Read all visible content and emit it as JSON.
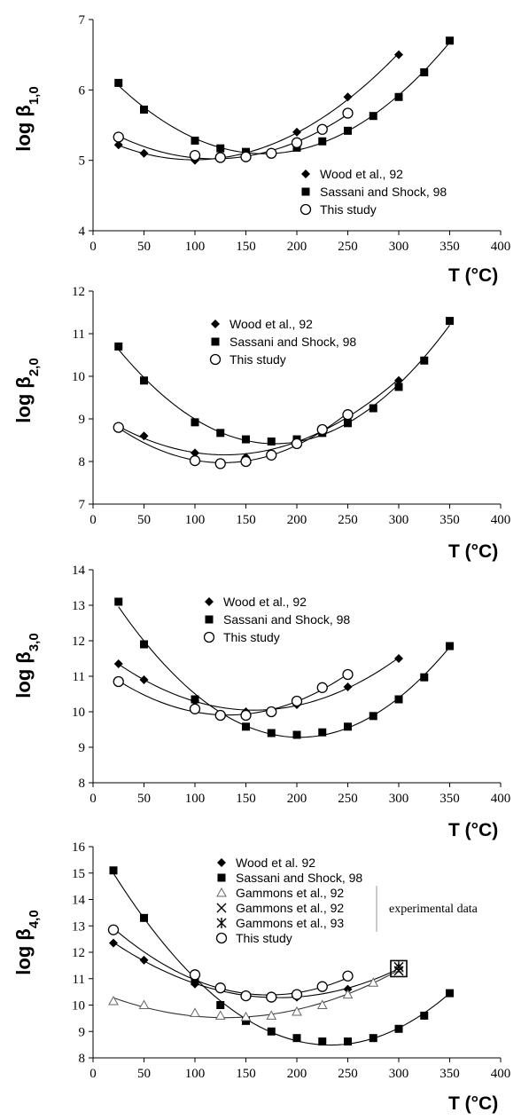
{
  "chart_data": [
    {
      "type": "scatter",
      "ylabel": {
        "main": "log β",
        "sub": "1,0"
      },
      "xlabel": "T (°C)",
      "xlim": [
        0,
        400
      ],
      "ylim": [
        4,
        7
      ],
      "xticks": [
        0,
        50,
        100,
        150,
        200,
        250,
        300,
        350,
        400
      ],
      "yticks": [
        4,
        5,
        6,
        7
      ],
      "legend_position": "bottom-right",
      "series": [
        {
          "name": "Wood et al., 92",
          "marker": "diamond",
          "x": [
            25,
            50,
            100,
            150,
            200,
            250,
            300
          ],
          "y": [
            5.22,
            5.1,
            5.0,
            5.08,
            5.4,
            5.9,
            6.5
          ]
        },
        {
          "name": "Sassani and Shock, 98",
          "marker": "square",
          "x": [
            25,
            50,
            100,
            125,
            150,
            200,
            225,
            250,
            275,
            300,
            325,
            350
          ],
          "y": [
            6.1,
            5.72,
            5.28,
            5.17,
            5.12,
            5.18,
            5.27,
            5.42,
            5.63,
            5.9,
            6.25,
            6.7
          ]
        },
        {
          "name": "This study",
          "marker": "circle",
          "x": [
            25,
            100,
            125,
            150,
            175,
            200,
            225,
            250
          ],
          "y": [
            5.33,
            5.07,
            5.04,
            5.05,
            5.1,
            5.25,
            5.44,
            5.67
          ]
        }
      ]
    },
    {
      "type": "scatter",
      "ylabel": {
        "main": "log β",
        "sub": "2,0"
      },
      "xlabel": "T (°C)",
      "xlim": [
        0,
        400
      ],
      "ylim": [
        7,
        12
      ],
      "xticks": [
        0,
        50,
        100,
        150,
        200,
        250,
        300,
        350,
        400
      ],
      "yticks": [
        7,
        8,
        9,
        10,
        11,
        12
      ],
      "legend_position": "top-center",
      "series": [
        {
          "name": "Wood et al., 92",
          "marker": "diamond",
          "x": [
            25,
            50,
            100,
            150,
            200,
            250,
            300
          ],
          "y": [
            8.8,
            8.6,
            8.2,
            8.1,
            8.5,
            9.1,
            9.9
          ]
        },
        {
          "name": "Sassani and Shock, 98",
          "marker": "square",
          "x": [
            25,
            50,
            100,
            125,
            150,
            175,
            200,
            225,
            250,
            275,
            300,
            325,
            350
          ],
          "y": [
            10.7,
            9.9,
            8.92,
            8.67,
            8.52,
            8.47,
            8.52,
            8.67,
            8.9,
            9.25,
            9.75,
            10.37,
            11.3
          ]
        },
        {
          "name": "This study",
          "marker": "circle",
          "x": [
            25,
            100,
            125,
            150,
            175,
            200,
            225,
            250
          ],
          "y": [
            8.8,
            8.02,
            7.95,
            8.0,
            8.15,
            8.42,
            8.75,
            9.1
          ]
        }
      ]
    },
    {
      "type": "scatter",
      "ylabel": {
        "main": "log β",
        "sub": "3,0"
      },
      "xlabel": "T (°C)",
      "xlim": [
        0,
        400
      ],
      "ylim": [
        8,
        14
      ],
      "xticks": [
        0,
        50,
        100,
        150,
        200,
        250,
        300,
        350,
        400
      ],
      "yticks": [
        8,
        9,
        10,
        11,
        12,
        13,
        14
      ],
      "legend_position": "top-center",
      "series": [
        {
          "name": "Wood et al., 92",
          "marker": "diamond",
          "x": [
            25,
            50,
            100,
            150,
            200,
            250,
            300
          ],
          "y": [
            11.35,
            10.9,
            10.3,
            10.0,
            10.2,
            10.7,
            11.5
          ]
        },
        {
          "name": "Sassani and Shock, 98",
          "marker": "square",
          "x": [
            25,
            50,
            100,
            150,
            175,
            200,
            225,
            250,
            275,
            300,
            325,
            350
          ],
          "y": [
            13.1,
            11.9,
            10.35,
            9.58,
            9.4,
            9.35,
            9.42,
            9.58,
            9.88,
            10.35,
            10.97,
            11.85
          ]
        },
        {
          "name": "This study",
          "marker": "circle",
          "x": [
            25,
            100,
            125,
            150,
            175,
            200,
            225,
            250
          ],
          "y": [
            10.85,
            10.08,
            9.9,
            9.9,
            10.0,
            10.3,
            10.68,
            11.05
          ]
        }
      ]
    },
    {
      "type": "scatter",
      "ylabel": {
        "main": "log β",
        "sub": "4,0"
      },
      "xlabel": "T (°C)",
      "xlim": [
        0,
        400
      ],
      "ylim": [
        8,
        16
      ],
      "xticks": [
        0,
        50,
        100,
        150,
        200,
        250,
        300,
        350,
        400
      ],
      "yticks": [
        8,
        9,
        10,
        11,
        12,
        13,
        14,
        15,
        16
      ],
      "legend_position": "top-center",
      "annotation": "experimental data",
      "series": [
        {
          "name": "Wood et al. 92",
          "marker": "diamond",
          "x": [
            20,
            50,
            100,
            150,
            200,
            250,
            300
          ],
          "y": [
            12.35,
            11.7,
            10.8,
            10.4,
            10.3,
            10.6,
            11.4
          ]
        },
        {
          "name": "Sassani and Shock, 98",
          "marker": "square",
          "x": [
            20,
            50,
            100,
            125,
            150,
            175,
            200,
            225,
            250,
            275,
            300,
            325,
            350
          ],
          "y": [
            15.1,
            13.3,
            10.9,
            10.0,
            9.4,
            9.0,
            8.75,
            8.62,
            8.62,
            8.75,
            9.1,
            9.6,
            10.45
          ]
        },
        {
          "name": "Gammons et al., 92",
          "marker": "triangle",
          "x": [
            20,
            50,
            100,
            125,
            150,
            175,
            200,
            225,
            250,
            275,
            300
          ],
          "y": [
            10.15,
            10.0,
            9.7,
            9.6,
            9.55,
            9.6,
            9.75,
            10.0,
            10.4,
            10.85,
            11.4
          ]
        },
        {
          "name": "Gammons et al., 92",
          "marker": "x",
          "x": [
            300
          ],
          "y": [
            11.3
          ]
        },
        {
          "name": "Gammons et al., 93",
          "marker": "asterisk",
          "x": [
            300
          ],
          "y": [
            11.45
          ]
        },
        {
          "name": "This study",
          "marker": "circle",
          "x": [
            20,
            100,
            125,
            150,
            175,
            200,
            225,
            250
          ],
          "y": [
            12.85,
            11.15,
            10.65,
            10.35,
            10.3,
            10.4,
            10.7,
            11.1
          ]
        }
      ]
    }
  ]
}
